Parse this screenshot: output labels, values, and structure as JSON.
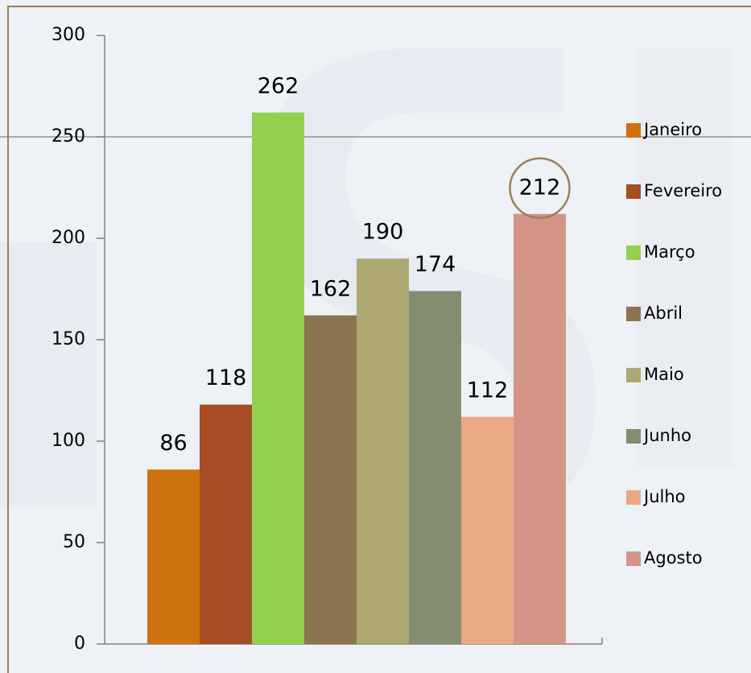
{
  "chart_data": {
    "type": "bar",
    "categories": [
      null
    ],
    "series": [
      {
        "name": "Janeiro",
        "color": "#cc730f",
        "values": [
          86
        ]
      },
      {
        "name": "Fevereiro",
        "color": "#a64d24",
        "values": [
          118
        ]
      },
      {
        "name": "Março",
        "color": "#92d050",
        "values": [
          262
        ]
      },
      {
        "name": "Abril",
        "color": "#8b7550",
        "values": [
          162
        ]
      },
      {
        "name": "Maio",
        "color": "#ada872",
        "values": [
          190
        ]
      },
      {
        "name": "Junho",
        "color": "#848c72",
        "values": [
          174
        ]
      },
      {
        "name": "Julho",
        "color": "#eba884",
        "values": [
          112
        ]
      },
      {
        "name": "Agosto",
        "color": "#d29588",
        "values": [
          212
        ]
      }
    ],
    "ylim": [
      0,
      300
    ],
    "yticks": [
      0,
      50,
      100,
      150,
      200,
      250,
      300
    ],
    "grid": false,
    "legend": "right"
  }
}
